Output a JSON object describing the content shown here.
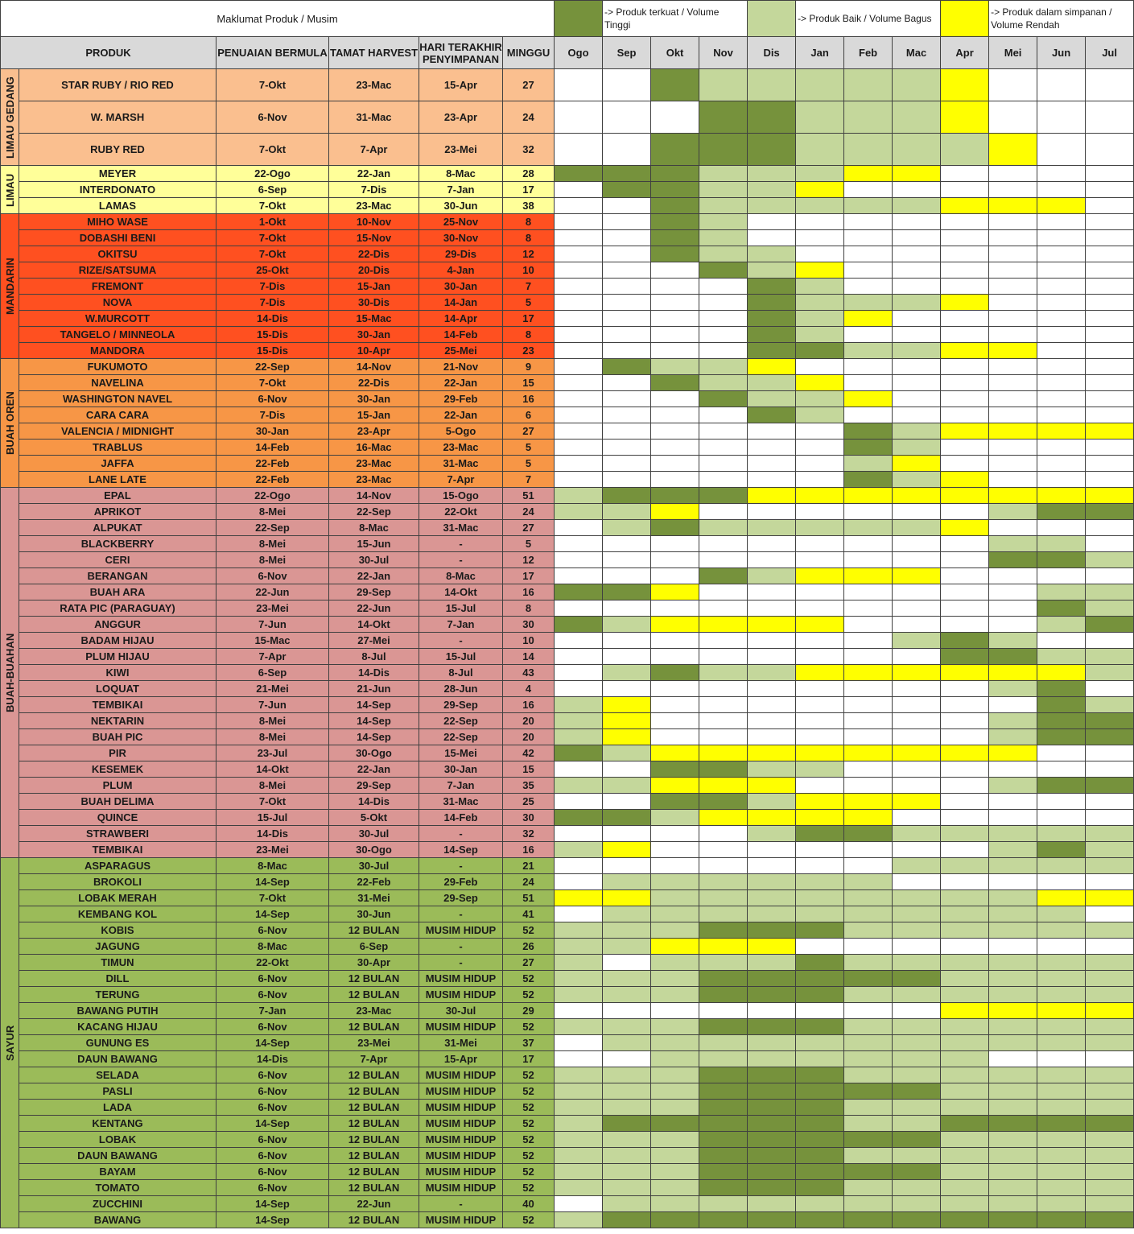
{
  "header": {
    "title": "Maklumat Produk / Musim",
    "legend": [
      {
        "key": "D",
        "color": "#76923c",
        "label": "-> Produk terkuat / Volume Tinggi"
      },
      {
        "key": "L",
        "color": "#c4d79b",
        "label": "-> Produk Baik / Volume Bagus"
      },
      {
        "key": "Y",
        "color": "#ffff00",
        "label": "-> Produk dalam simpanan / Volume Rendah"
      }
    ],
    "blank_color": "#ffffff",
    "columns": [
      "PRODUK",
      "PENUAIAN BERMULA",
      "TAMAT HARVEST",
      "HARI TERAKHIR PENYIMPANAN",
      "MINGGU"
    ],
    "months": [
      "Ogo",
      "Sep",
      "Okt",
      "Nov",
      "Dis",
      "Jan",
      "Feb",
      "Mac",
      "Apr",
      "Mei",
      "Jun",
      "Jul"
    ]
  },
  "groups": [
    {
      "name": "LIMAU GEDANG",
      "color": "#fabf8f",
      "rows": [
        {
          "product": "STAR RUBY / RIO RED",
          "start": "7-Okt",
          "end": "23-Mac",
          "last": "15-Apr",
          "weeks": 27,
          "cells": "WWDLLLLLYWWW"
        },
        {
          "product": "W. MARSH",
          "start": "6-Nov",
          "end": "31-Mac",
          "last": "23-Apr",
          "weeks": 24,
          "cells": "WWWDDLLLYWWW"
        },
        {
          "product": "RUBY RED",
          "start": "7-Okt",
          "end": "7-Apr",
          "last": "23-Mei",
          "weeks": 32,
          "cells": "WWDDDLLLLYWW"
        }
      ]
    },
    {
      "name": "LIMAU",
      "color": "#ffff99",
      "rows": [
        {
          "product": "MEYER",
          "start": "22-Ogo",
          "end": "22-Jan",
          "last": "8-Mac",
          "weeks": 28,
          "cells": "DDDLLLYYWWWW"
        },
        {
          "product": "INTERDONATO",
          "start": "6-Sep",
          "end": "7-Dis",
          "last": "7-Jan",
          "weeks": 17,
          "cells": "WDDLLYWWWWWW"
        },
        {
          "product": "LAMAS",
          "start": "7-Okt",
          "end": "23-Mac",
          "last": "30-Jun",
          "weeks": 38,
          "cells": "WWDLLLLLYYYW"
        }
      ]
    },
    {
      "name": "MANDARIN",
      "color": "#ff5020",
      "rows": [
        {
          "product": "MIHO WASE",
          "start": "1-Okt",
          "end": "10-Nov",
          "last": "25-Nov",
          "weeks": 8,
          "cells": "WWDLWWWWWWWW"
        },
        {
          "product": "DOBASHI BENI",
          "start": "7-Okt",
          "end": "15-Nov",
          "last": "30-Nov",
          "weeks": 8,
          "cells": "WWDLWWWWWWWW"
        },
        {
          "product": "OKITSU",
          "start": "7-Okt",
          "end": "22-Dis",
          "last": "29-Dis",
          "weeks": 12,
          "cells": "WWDLLWWWWWWW"
        },
        {
          "product": "RIZE/SATSUMA",
          "start": "25-Okt",
          "end": "20-Dis",
          "last": "4-Jan",
          "weeks": 10,
          "cells": "WWWDLYWWWWWW"
        },
        {
          "product": "FREMONT",
          "start": "7-Dis",
          "end": "15-Jan",
          "last": "30-Jan",
          "weeks": 7,
          "cells": "WWWWDLWWWWWW"
        },
        {
          "product": "NOVA",
          "start": "7-Dis",
          "end": "30-Dis",
          "last": "14-Jan",
          "weeks": 5,
          "cells": "WWWWDLLLYWWW"
        },
        {
          "product": "W.MURCOTT",
          "start": "14-Dis",
          "end": "15-Mac",
          "last": "14-Apr",
          "weeks": 17,
          "cells": "WWWWDLYWWWWW"
        },
        {
          "product": "TANGELO / MINNEOLA",
          "start": "15-Dis",
          "end": "30-Jan",
          "last": "14-Feb",
          "weeks": 8,
          "cells": "WWWWDLWWWWWW"
        },
        {
          "product": "MANDORA",
          "start": "15-Dis",
          "end": "10-Apr",
          "last": "25-Mei",
          "weeks": 23,
          "cells": "WWWWDDLLYYWW"
        }
      ]
    },
    {
      "name": "BUAH OREN",
      "color": "#f79646",
      "rows": [
        {
          "product": "FUKUMOTO",
          "start": "22-Sep",
          "end": "14-Nov",
          "last": "21-Nov",
          "weeks": 9,
          "cells": "WDLLYWWWWWWW"
        },
        {
          "product": "NAVELINA",
          "start": "7-Okt",
          "end": "22-Dis",
          "last": "22-Jan",
          "weeks": 15,
          "cells": "WWDLLYWWWWWW"
        },
        {
          "product": "WASHINGTON NAVEL",
          "start": "6-Nov",
          "end": "30-Jan",
          "last": "29-Feb",
          "weeks": 16,
          "cells": "WWWDLLYWWWWW"
        },
        {
          "product": "CARA CARA",
          "start": "7-Dis",
          "end": "15-Jan",
          "last": "22-Jan",
          "weeks": 6,
          "cells": "WWWWDLWWWWWW"
        },
        {
          "product": "VALENCIA / MIDNIGHT",
          "start": "30-Jan",
          "end": "23-Apr",
          "last": "5-Ogo",
          "weeks": 27,
          "cells": "WWWWWWDLYYYY"
        },
        {
          "product": "TRABLUS",
          "start": "14-Feb",
          "end": "16-Mac",
          "last": "23-Mac",
          "weeks": 5,
          "cells": "WWWWWWDLWWWW"
        },
        {
          "product": "JAFFA",
          "start": "22-Feb",
          "end": "23-Mac",
          "last": "31-Mac",
          "weeks": 5,
          "cells": "WWWWWWLYWWWW"
        },
        {
          "product": "LANE LATE",
          "start": "22-Feb",
          "end": "23-Mac",
          "last": "7-Apr",
          "weeks": 7,
          "cells": "WWWWWWDLYWWW"
        }
      ]
    },
    {
      "name": "BUAH-BUAHAN",
      "color": "#da9694",
      "rows": [
        {
          "product": "EPAL",
          "start": "22-Ogo",
          "end": "14-Nov",
          "last": "15-Ogo",
          "weeks": 51,
          "cells": "LDDDYYYYYYYY"
        },
        {
          "product": "APRIKOT",
          "start": "8-Mei",
          "end": "22-Sep",
          "last": "22-Okt",
          "weeks": 24,
          "cells": "LLYWWWWWWLDD"
        },
        {
          "product": "ALPUKAT",
          "start": "22-Sep",
          "end": "8-Mac",
          "last": "31-Mac",
          "weeks": 27,
          "cells": "WLDLLLLLYWWW"
        },
        {
          "product": "BLACKBERRY",
          "start": "8-Mei",
          "end": "15-Jun",
          "last": "-",
          "weeks": 5,
          "cells": "WWWWWWWWWLLW"
        },
        {
          "product": "CERI",
          "start": "8-Mei",
          "end": "30-Jul",
          "last": "-",
          "weeks": 12,
          "cells": "WWWWWWWWWDDL"
        },
        {
          "product": "BERANGAN",
          "start": "6-Nov",
          "end": "22-Jan",
          "last": "8-Mac",
          "weeks": 17,
          "cells": "WWWDLYYYWWWW"
        },
        {
          "product": "BUAH ARA",
          "start": "22-Jun",
          "end": "29-Sep",
          "last": "14-Okt",
          "weeks": 16,
          "cells": "DDYWWWWWWWLL"
        },
        {
          "product": "RATA PIC (PARAGUAY)",
          "start": "23-Mei",
          "end": "22-Jun",
          "last": "15-Jul",
          "weeks": 8,
          "cells": "WWWWWWWWWWDL"
        },
        {
          "product": "ANGGUR",
          "start": "7-Jun",
          "end": "14-Okt",
          "last": "7-Jan",
          "weeks": 30,
          "cells": "DLYYYYWWWWLD"
        },
        {
          "product": "BADAM HIJAU",
          "start": "15-Mac",
          "end": "27-Mei",
          "last": "-",
          "weeks": 10,
          "cells": "WWWWWWWLDLWW"
        },
        {
          "product": "PLUM HIJAU",
          "start": "7-Apr",
          "end": "8-Jul",
          "last": "15-Jul",
          "weeks": 14,
          "cells": "WWWWWWWWDDLL"
        },
        {
          "product": "KIWI",
          "start": "6-Sep",
          "end": "14-Dis",
          "last": "8-Jul",
          "weeks": 43,
          "cells": "WLDLLYYYYYYL"
        },
        {
          "product": "LOQUAT",
          "start": "21-Mei",
          "end": "21-Jun",
          "last": "28-Jun",
          "weeks": 4,
          "cells": "WWWWWWWWWLDW"
        },
        {
          "product": "TEMBIKAI",
          "start": "7-Jun",
          "end": "14-Sep",
          "last": "29-Sep",
          "weeks": 16,
          "cells": "LYWWWWWWWWDL"
        },
        {
          "product": "NEKTARIN",
          "start": "8-Mei",
          "end": "14-Sep",
          "last": "22-Sep",
          "weeks": 20,
          "cells": "LYWWWWWWWLDD"
        },
        {
          "product": "BUAH PIC",
          "start": "8-Mei",
          "end": "14-Sep",
          "last": "22-Sep",
          "weeks": 20,
          "cells": "LYWWWWWWWLDD"
        },
        {
          "product": "PIR",
          "start": "23-Jul",
          "end": "30-Ogo",
          "last": "15-Mei",
          "weeks": 42,
          "cells": "DLYYYYYYYYWW"
        },
        {
          "product": "KESEMEK",
          "start": "14-Okt",
          "end": "22-Jan",
          "last": "30-Jan",
          "weeks": 15,
          "cells": "WWDDLLWWWWWW"
        },
        {
          "product": "PLUM",
          "start": "8-Mei",
          "end": "29-Sep",
          "last": "7-Jan",
          "weeks": 35,
          "cells": "LLYYYWWWWLDD"
        },
        {
          "product": "BUAH DELIMA",
          "start": "7-Okt",
          "end": "14-Dis",
          "last": "31-Mac",
          "weeks": 25,
          "cells": "WWDDLYYYWWWW"
        },
        {
          "product": "QUINCE",
          "start": "15-Jul",
          "end": "5-Okt",
          "last": "14-Feb",
          "weeks": 30,
          "cells": "DDLYYYYWWWWW"
        },
        {
          "product": "STRAWBERI",
          "start": "14-Dis",
          "end": "30-Jul",
          "last": "-",
          "weeks": 32,
          "cells": "WWWWLDDLLLLL"
        },
        {
          "product": "TEMBIKAI",
          "start": "23-Mei",
          "end": "30-Ogo",
          "last": "14-Sep",
          "weeks": 16,
          "cells": "LYWWWWWWWLDL"
        }
      ]
    },
    {
      "name": "SAYUR",
      "color": "#9bbb59",
      "rows": [
        {
          "product": "ASPARAGUS",
          "start": "8-Mac",
          "end": "30-Jul",
          "last": "-",
          "weeks": 21,
          "cells": "WWWWWWWLLLLL"
        },
        {
          "product": "BROKOLI",
          "start": "14-Sep",
          "end": "22-Feb",
          "last": "29-Feb",
          "weeks": 24,
          "cells": "WLLLLLLWWWWW"
        },
        {
          "product": "LOBAK MERAH",
          "start": "7-Okt",
          "end": "31-Mei",
          "last": "29-Sep",
          "weeks": 51,
          "cells": "YYLLLLLLLLYY"
        },
        {
          "product": "KEMBANG KOL",
          "start": "14-Sep",
          "end": "30-Jun",
          "last": "-",
          "weeks": 41,
          "cells": "WLLLLLLLLLLW"
        },
        {
          "product": "KOBIS",
          "start": "6-Nov",
          "end": "12 BULAN",
          "last": "MUSIM HIDUP",
          "weeks": 52,
          "cells": "LLLDDDLLLLLL"
        },
        {
          "product": "JAGUNG",
          "start": "8-Mac",
          "end": "6-Sep",
          "last": "-",
          "weeks": 26,
          "cells": "LLYYYWWWWWWW"
        },
        {
          "product": "TIMUN",
          "start": "22-Okt",
          "end": "30-Apr",
          "last": "-",
          "weeks": 27,
          "cells": "LWLLLDLLLLLL"
        },
        {
          "product": "DILL",
          "start": "6-Nov",
          "end": "12 BULAN",
          "last": "MUSIM HIDUP",
          "weeks": 52,
          "cells": "LLLDDDDDLLLL"
        },
        {
          "product": "TERUNG",
          "start": "6-Nov",
          "end": "12 BULAN",
          "last": "MUSIM HIDUP",
          "weeks": 52,
          "cells": "LLLDDDLLLLLL"
        },
        {
          "product": "BAWANG PUTIH",
          "start": "7-Jan",
          "end": "23-Mac",
          "last": "30-Jul",
          "weeks": 29,
          "cells": "WWWWWWWWYYYY"
        },
        {
          "product": "KACANG HIJAU",
          "start": "6-Nov",
          "end": "12 BULAN",
          "last": "MUSIM HIDUP",
          "weeks": 52,
          "cells": "LLLDDDLLLLLL"
        },
        {
          "product": "GUNUNG ES",
          "start": "14-Sep",
          "end": "23-Mei",
          "last": "31-Mei",
          "weeks": 37,
          "cells": "WLLLLLLLLLLL"
        },
        {
          "product": "DAUN BAWANG",
          "start": "14-Dis",
          "end": "7-Apr",
          "last": "15-Apr",
          "weeks": 17,
          "cells": "WWLLLLLLLWWW"
        },
        {
          "product": "SELADA",
          "start": "6-Nov",
          "end": "12 BULAN",
          "last": "MUSIM HIDUP",
          "weeks": 52,
          "cells": "LLLDDDLLLLLL"
        },
        {
          "product": "PASLI",
          "start": "6-Nov",
          "end": "12 BULAN",
          "last": "MUSIM HIDUP",
          "weeks": 52,
          "cells": "LLLDDDDDLLLL"
        },
        {
          "product": "LADA",
          "start": "6-Nov",
          "end": "12 BULAN",
          "last": "MUSIM HIDUP",
          "weeks": 52,
          "cells": "LLLDDDLLLLLL"
        },
        {
          "product": "KENTANG",
          "start": "14-Sep",
          "end": "12 BULAN",
          "last": "MUSIM HIDUP",
          "weeks": 52,
          "cells": "LDDDDDLLDDDD"
        },
        {
          "product": "LOBAK",
          "start": "6-Nov",
          "end": "12 BULAN",
          "last": "MUSIM HIDUP",
          "weeks": 52,
          "cells": "LLLDDDDDLLLL"
        },
        {
          "product": "DAUN BAWANG",
          "start": "6-Nov",
          "end": "12 BULAN",
          "last": "MUSIM HIDUP",
          "weeks": 52,
          "cells": "LLLDDDLLLLLL"
        },
        {
          "product": "BAYAM",
          "start": "6-Nov",
          "end": "12 BULAN",
          "last": "MUSIM HIDUP",
          "weeks": 52,
          "cells": "LLLDDDDDLLLL"
        },
        {
          "product": "TOMATO",
          "start": "6-Nov",
          "end": "12 BULAN",
          "last": "MUSIM HIDUP",
          "weeks": 52,
          "cells": "LLLDDDLLLLLL"
        },
        {
          "product": "ZUCCHINI",
          "start": "14-Sep",
          "end": "22-Jun",
          "last": "-",
          "weeks": 40,
          "cells": "WLLLLLLLLLLL"
        },
        {
          "product": "BAWANG",
          "start": "14-Sep",
          "end": "12 BULAN",
          "last": "MUSIM HIDUP",
          "weeks": 52,
          "cells": "LDDDDDDDDDDD"
        }
      ]
    }
  ]
}
